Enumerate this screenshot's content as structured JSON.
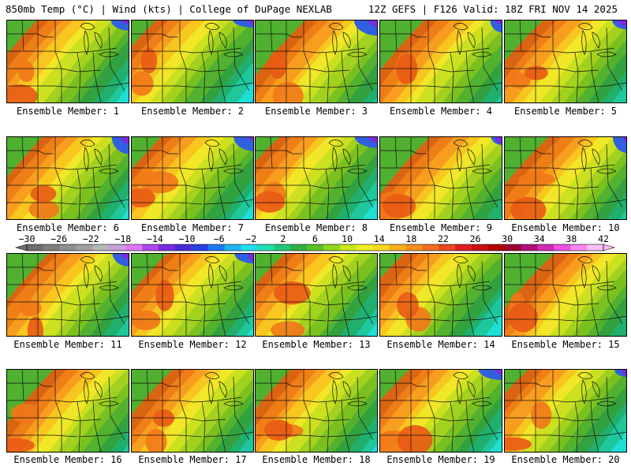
{
  "header": {
    "left_title": "850mb Temp (°C) | Wind (kts) | College of DuPage NEXLAB",
    "right_title": "12Z GEFS | F126 Valid: 18Z FRI NOV 14 2025"
  },
  "map_variable": "850mb Temperature",
  "units": "°C",
  "panels": [
    {
      "label": "Ensemble Member: 1"
    },
    {
      "label": "Ensemble Member: 2"
    },
    {
      "label": "Ensemble Member: 3"
    },
    {
      "label": "Ensemble Member: 4"
    },
    {
      "label": "Ensemble Member: 5"
    },
    {
      "label": "Ensemble Member: 6"
    },
    {
      "label": "Ensemble Member: 7"
    },
    {
      "label": "Ensemble Member: 8"
    },
    {
      "label": "Ensemble Member: 9"
    },
    {
      "label": "Ensemble Member: 10"
    },
    {
      "label": "Ensemble Member: 11"
    },
    {
      "label": "Ensemble Member: 12"
    },
    {
      "label": "Ensemble Member: 13"
    },
    {
      "label": "Ensemble Member: 14"
    },
    {
      "label": "Ensemble Member: 15"
    },
    {
      "label": "Ensemble Member: 16"
    },
    {
      "label": "Ensemble Member: 17"
    },
    {
      "label": "Ensemble Member: 18"
    },
    {
      "label": "Ensemble Member: 19"
    },
    {
      "label": "Ensemble Member: 20"
    }
  ],
  "colorbar": {
    "ticks": [
      "−30",
      "−26",
      "−22",
      "−18",
      "−14",
      "−10",
      "−6",
      "−2",
      "2",
      "6",
      "10",
      "14",
      "18",
      "22",
      "26",
      "30",
      "34",
      "38",
      "42"
    ],
    "colors": [
      "#6e6e6e",
      "#7f7f7f",
      "#8f8f8f",
      "#a0a0a0",
      "#b8b8b8",
      "#c8a0dc",
      "#dc78f0",
      "#b048e8",
      "#7a2ae0",
      "#4b2ad8",
      "#2840e0",
      "#1e78f0",
      "#20b4f0",
      "#20e0f0",
      "#20e0b0",
      "#20c878",
      "#30b040",
      "#58c028",
      "#90d820",
      "#c8e818",
      "#f0f020",
      "#f8d820",
      "#f8b020",
      "#f89020",
      "#f07020",
      "#e84820",
      "#e02020",
      "#c81010",
      "#b00000",
      "#a00030",
      "#b0107a",
      "#d02ab4",
      "#f050e0",
      "#f888f0",
      "#fcc0f8"
    ]
  }
}
